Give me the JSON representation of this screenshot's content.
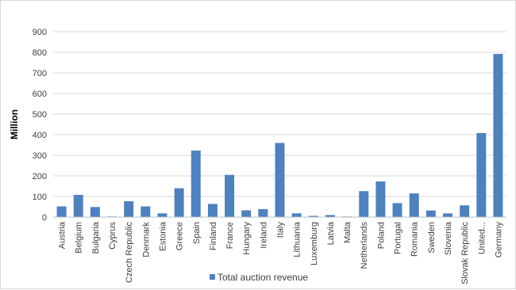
{
  "chart_data": {
    "type": "bar",
    "title": "",
    "xlabel": "",
    "ylabel": "Million",
    "ylim": [
      0,
      900
    ],
    "yticks": [
      0,
      100,
      200,
      300,
      400,
      500,
      600,
      700,
      800,
      900
    ],
    "grid": true,
    "legend_position": "bottom",
    "categories": [
      "Austria",
      "Belgium",
      "Bulgaria",
      "Cyprus",
      "Czech Republic",
      "Denmark",
      "Estonia",
      "Greece",
      "Spain",
      "Finland",
      "France",
      "Hungary",
      "Ireland",
      "Italy",
      "Lithuania",
      "Luxemburg",
      "Latvia",
      "Malta",
      "Netherlands",
      "Poland",
      "Portugal",
      "Romania",
      "Sweden",
      "Slovenia",
      "Slovak Republic",
      "United...",
      "Germany"
    ],
    "series": [
      {
        "name": "Total auction revenue",
        "color": "#4f81bd",
        "values": [
          52,
          108,
          49,
          3,
          77,
          52,
          18,
          140,
          323,
          64,
          205,
          33,
          39,
          360,
          18,
          6,
          10,
          3,
          126,
          173,
          68,
          115,
          32,
          18,
          57,
          408,
          792
        ]
      }
    ]
  }
}
